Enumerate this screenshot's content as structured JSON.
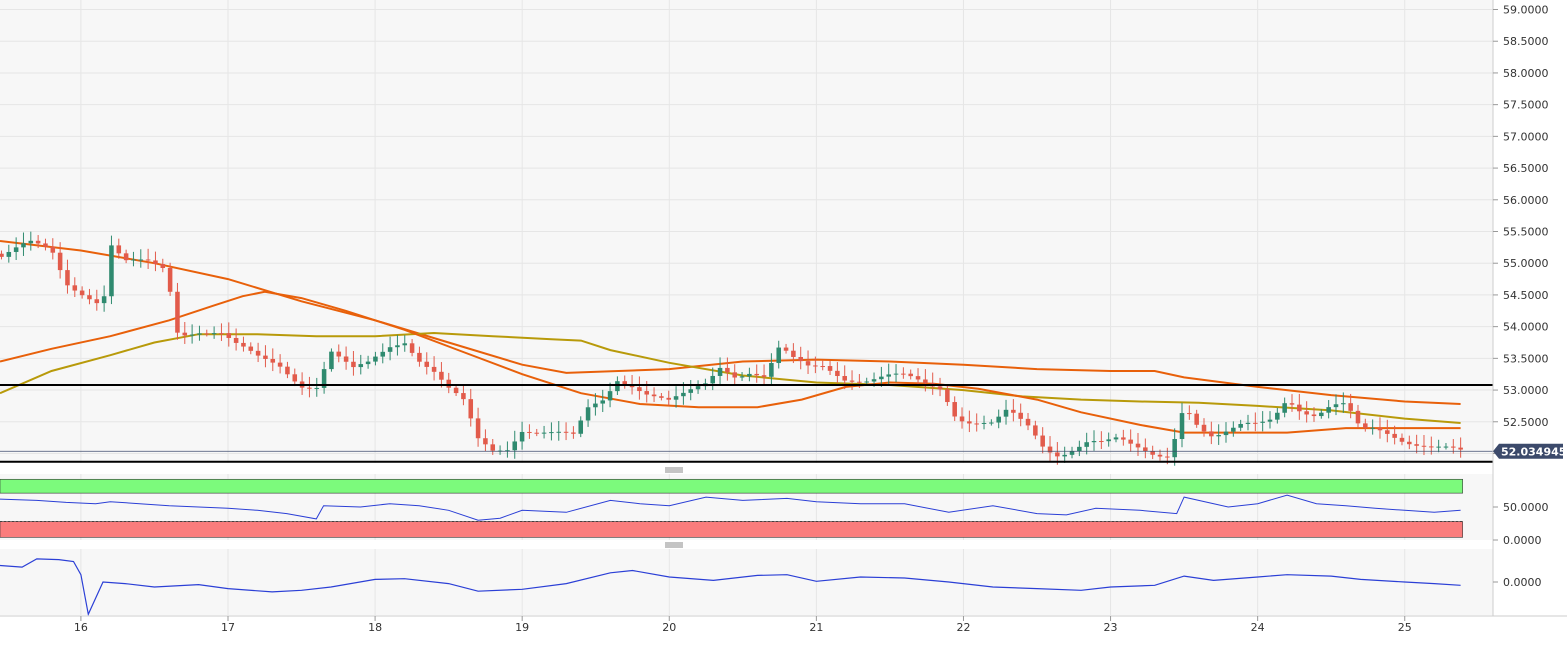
{
  "chart_data": [
    {
      "type": "candlestick",
      "panel": "price",
      "y_ticks": [
        "59.0000",
        "58.5000",
        "58.0000",
        "57.5000",
        "57.0000",
        "56.5000",
        "56.0000",
        "55.5000",
        "55.0000",
        "54.5000",
        "54.0000",
        "53.5000",
        "53.0000",
        "52.5000",
        "52.0000"
      ],
      "ylim": [
        51.85,
        59.15
      ],
      "x_ticks": [
        "16",
        "17",
        "18",
        "19",
        "20",
        "21",
        "22",
        "23",
        "24",
        "25"
      ],
      "x_tick_values": [
        16,
        17,
        18,
        19,
        20,
        21,
        22,
        23,
        24,
        25
      ],
      "xlim": [
        15.45,
        25.6
      ],
      "last_price": "52.034945",
      "last_price_value": 52.035,
      "horizontal_levels": [
        53.08,
        51.87
      ],
      "ohlc_start_x": 15.46,
      "ohlc_end_x": 25.38,
      "close_path": [
        [
          15.46,
          55.1
        ],
        [
          15.65,
          55.3
        ],
        [
          15.8,
          55.2
        ],
        [
          15.9,
          54.7
        ],
        [
          16.05,
          54.5
        ],
        [
          16.15,
          54.35
        ],
        [
          16.2,
          55.3
        ],
        [
          16.3,
          55.0
        ],
        [
          16.45,
          55.0
        ],
        [
          16.58,
          54.9
        ],
        [
          16.66,
          53.9
        ],
        [
          16.8,
          53.95
        ],
        [
          16.95,
          53.9
        ],
        [
          17.05,
          53.7
        ],
        [
          17.2,
          53.5
        ],
        [
          17.35,
          53.4
        ],
        [
          17.5,
          53.1
        ],
        [
          17.6,
          53.05
        ],
        [
          17.7,
          53.6
        ],
        [
          17.85,
          53.3
        ],
        [
          17.95,
          53.4
        ],
        [
          18.1,
          53.7
        ],
        [
          18.2,
          53.8
        ],
        [
          18.3,
          53.5
        ],
        [
          18.4,
          53.3
        ],
        [
          18.5,
          53.0
        ],
        [
          18.6,
          52.8
        ],
        [
          18.7,
          52.2
        ],
        [
          18.8,
          52.05
        ],
        [
          18.9,
          52.1
        ],
        [
          19.0,
          52.4
        ],
        [
          19.1,
          52.35
        ],
        [
          19.25,
          52.3
        ],
        [
          19.35,
          52.25
        ],
        [
          19.45,
          52.7
        ],
        [
          19.55,
          52.85
        ],
        [
          19.65,
          53.2
        ],
        [
          19.75,
          53.1
        ],
        [
          19.85,
          52.95
        ],
        [
          20.0,
          52.8
        ],
        [
          20.1,
          52.9
        ],
        [
          20.25,
          53.1
        ],
        [
          20.35,
          53.4
        ],
        [
          20.45,
          53.25
        ],
        [
          20.55,
          53.3
        ],
        [
          20.65,
          53.2
        ],
        [
          20.75,
          53.65
        ],
        [
          20.85,
          53.45
        ],
        [
          20.95,
          53.35
        ],
        [
          21.05,
          53.4
        ],
        [
          21.2,
          53.2
        ],
        [
          21.35,
          53.15
        ],
        [
          21.5,
          53.2
        ],
        [
          21.6,
          53.2
        ],
        [
          21.75,
          53.1
        ],
        [
          21.85,
          53.05
        ],
        [
          21.95,
          52.6
        ],
        [
          22.05,
          52.5
        ],
        [
          22.2,
          52.45
        ],
        [
          22.3,
          52.65
        ],
        [
          22.45,
          52.4
        ],
        [
          22.55,
          52.1
        ],
        [
          22.65,
          52.0
        ],
        [
          22.75,
          52.1
        ],
        [
          22.85,
          52.2
        ],
        [
          22.95,
          52.15
        ],
        [
          23.05,
          52.2
        ],
        [
          23.15,
          52.1
        ],
        [
          23.3,
          52.0
        ],
        [
          23.4,
          52.0
        ],
        [
          23.5,
          52.8
        ],
        [
          23.6,
          52.4
        ],
        [
          23.7,
          52.2
        ],
        [
          23.8,
          52.3
        ],
        [
          23.9,
          52.45
        ],
        [
          24.0,
          52.5
        ],
        [
          24.1,
          52.6
        ],
        [
          24.2,
          52.9
        ],
        [
          24.3,
          52.65
        ],
        [
          24.4,
          52.55
        ],
        [
          24.5,
          52.7
        ],
        [
          24.6,
          52.75
        ],
        [
          24.7,
          52.4
        ],
        [
          24.8,
          52.45
        ],
        [
          24.9,
          52.35
        ],
        [
          25.0,
          52.2
        ],
        [
          25.1,
          52.1
        ],
        [
          25.2,
          52.05
        ],
        [
          25.3,
          52.05
        ],
        [
          25.38,
          52.03
        ]
      ],
      "ma_lines": [
        {
          "color": "#e8600a",
          "points": [
            [
              15.45,
              55.35
            ],
            [
              16.0,
              55.2
            ],
            [
              16.5,
              55.0
            ],
            [
              17.0,
              54.75
            ],
            [
              17.5,
              54.4
            ],
            [
              18.0,
              54.1
            ],
            [
              18.5,
              53.75
            ],
            [
              19.0,
              53.4
            ],
            [
              19.3,
              53.27
            ],
            [
              20.0,
              53.33
            ],
            [
              20.5,
              53.45
            ],
            [
              21.0,
              53.48
            ],
            [
              21.5,
              53.45
            ],
            [
              22.0,
              53.4
            ],
            [
              22.5,
              53.33
            ],
            [
              23.0,
              53.3
            ],
            [
              23.3,
              53.3
            ],
            [
              23.5,
              53.2
            ],
            [
              24.0,
              53.05
            ],
            [
              24.5,
              52.92
            ],
            [
              25.0,
              52.82
            ],
            [
              25.38,
              52.78
            ]
          ]
        },
        {
          "color": "#b89a0a",
          "points": [
            [
              15.45,
              52.95
            ],
            [
              15.8,
              53.3
            ],
            [
              16.2,
              53.55
            ],
            [
              16.5,
              53.75
            ],
            [
              16.8,
              53.88
            ],
            [
              17.2,
              53.88
            ],
            [
              17.6,
              53.85
            ],
            [
              18.0,
              53.85
            ],
            [
              18.4,
              53.9
            ],
            [
              18.8,
              53.85
            ],
            [
              19.2,
              53.8
            ],
            [
              19.4,
              53.78
            ],
            [
              19.6,
              53.63
            ],
            [
              20.0,
              53.43
            ],
            [
              20.5,
              53.23
            ],
            [
              21.0,
              53.12
            ],
            [
              21.5,
              53.08
            ],
            [
              22.0,
              53.0
            ],
            [
              22.4,
              52.9
            ],
            [
              22.8,
              52.85
            ],
            [
              23.2,
              52.82
            ],
            [
              23.6,
              52.8
            ],
            [
              24.0,
              52.75
            ],
            [
              24.5,
              52.68
            ],
            [
              25.0,
              52.55
            ],
            [
              25.38,
              52.48
            ]
          ]
        },
        {
          "color": "#e8600a",
          "points": [
            [
              15.45,
              53.45
            ],
            [
              15.8,
              53.65
            ],
            [
              16.2,
              53.85
            ],
            [
              16.6,
              54.1
            ],
            [
              16.9,
              54.33
            ],
            [
              17.1,
              54.48
            ],
            [
              17.25,
              54.55
            ],
            [
              17.5,
              54.45
            ],
            [
              17.8,
              54.25
            ],
            [
              18.2,
              53.95
            ],
            [
              18.6,
              53.6
            ],
            [
              19.0,
              53.25
            ],
            [
              19.4,
              52.95
            ],
            [
              19.8,
              52.78
            ],
            [
              20.2,
              52.73
            ],
            [
              20.6,
              52.73
            ],
            [
              20.9,
              52.85
            ],
            [
              21.2,
              53.05
            ],
            [
              21.5,
              53.12
            ],
            [
              21.8,
              53.1
            ],
            [
              22.1,
              53.02
            ],
            [
              22.5,
              52.85
            ],
            [
              22.8,
              52.65
            ],
            [
              23.2,
              52.45
            ],
            [
              23.5,
              52.33
            ],
            [
              23.8,
              52.33
            ],
            [
              24.2,
              52.33
            ],
            [
              24.6,
              52.4
            ],
            [
              25.0,
              52.4
            ],
            [
              25.38,
              52.4
            ]
          ]
        }
      ]
    },
    {
      "type": "line",
      "panel": "oscillator",
      "y_ticks": [
        "50.0000",
        "0.0000"
      ],
      "ylim": [
        0,
        100
      ],
      "overbought_zone": [
        71,
        92
      ],
      "oversold_zone": [
        4,
        28
      ],
      "zone_colors": {
        "overbought": "#7cfa7c",
        "oversold": "#fa7c7c"
      },
      "points": [
        [
          15.45,
          62
        ],
        [
          15.7,
          60
        ],
        [
          15.9,
          57
        ],
        [
          16.1,
          55
        ],
        [
          16.2,
          58
        ],
        [
          16.4,
          55
        ],
        [
          16.6,
          52
        ],
        [
          16.8,
          50
        ],
        [
          17.0,
          48
        ],
        [
          17.2,
          45
        ],
        [
          17.4,
          40
        ],
        [
          17.6,
          32
        ],
        [
          17.65,
          52
        ],
        [
          17.9,
          50
        ],
        [
          18.1,
          55
        ],
        [
          18.3,
          52
        ],
        [
          18.5,
          45
        ],
        [
          18.7,
          30
        ],
        [
          18.85,
          33
        ],
        [
          19.0,
          45
        ],
        [
          19.3,
          42
        ],
        [
          19.6,
          60
        ],
        [
          19.8,
          55
        ],
        [
          20.0,
          52
        ],
        [
          20.25,
          65
        ],
        [
          20.5,
          60
        ],
        [
          20.8,
          63
        ],
        [
          21.0,
          58
        ],
        [
          21.3,
          55
        ],
        [
          21.6,
          55
        ],
        [
          21.9,
          42
        ],
        [
          22.2,
          52
        ],
        [
          22.5,
          40
        ],
        [
          22.7,
          38
        ],
        [
          22.9,
          48
        ],
        [
          23.2,
          45
        ],
        [
          23.45,
          40
        ],
        [
          23.5,
          65
        ],
        [
          23.8,
          50
        ],
        [
          24.0,
          55
        ],
        [
          24.2,
          68
        ],
        [
          24.4,
          55
        ],
        [
          24.6,
          52
        ],
        [
          24.8,
          48
        ],
        [
          25.0,
          45
        ],
        [
          25.2,
          42
        ],
        [
          25.38,
          45
        ]
      ]
    },
    {
      "type": "line",
      "panel": "momentum",
      "y_ticks": [
        "0.0000"
      ],
      "ylim": [
        -1.0,
        1.0
      ],
      "points": [
        [
          15.45,
          0.5
        ],
        [
          15.6,
          0.45
        ],
        [
          15.7,
          0.7
        ],
        [
          15.85,
          0.68
        ],
        [
          15.95,
          0.62
        ],
        [
          16.0,
          0.22
        ],
        [
          16.05,
          -0.98
        ],
        [
          16.15,
          0.0
        ],
        [
          16.3,
          -0.05
        ],
        [
          16.5,
          -0.15
        ],
        [
          16.8,
          -0.08
        ],
        [
          17.0,
          -0.2
        ],
        [
          17.3,
          -0.3
        ],
        [
          17.5,
          -0.25
        ],
        [
          17.7,
          -0.15
        ],
        [
          18.0,
          0.08
        ],
        [
          18.2,
          0.1
        ],
        [
          18.5,
          -0.05
        ],
        [
          18.7,
          -0.28
        ],
        [
          19.0,
          -0.22
        ],
        [
          19.3,
          -0.05
        ],
        [
          19.6,
          0.28
        ],
        [
          19.75,
          0.35
        ],
        [
          20.0,
          0.15
        ],
        [
          20.3,
          0.05
        ],
        [
          20.6,
          0.2
        ],
        [
          20.8,
          0.22
        ],
        [
          21.0,
          0.02
        ],
        [
          21.3,
          0.15
        ],
        [
          21.6,
          0.12
        ],
        [
          21.9,
          0.0
        ],
        [
          22.2,
          -0.15
        ],
        [
          22.5,
          -0.2
        ],
        [
          22.8,
          -0.25
        ],
        [
          23.0,
          -0.15
        ],
        [
          23.3,
          -0.1
        ],
        [
          23.5,
          0.18
        ],
        [
          23.7,
          0.05
        ],
        [
          24.0,
          0.15
        ],
        [
          24.2,
          0.22
        ],
        [
          24.5,
          0.18
        ],
        [
          24.7,
          0.08
        ],
        [
          25.0,
          0.0
        ],
        [
          25.2,
          -0.05
        ],
        [
          25.38,
          -0.1
        ]
      ]
    }
  ]
}
